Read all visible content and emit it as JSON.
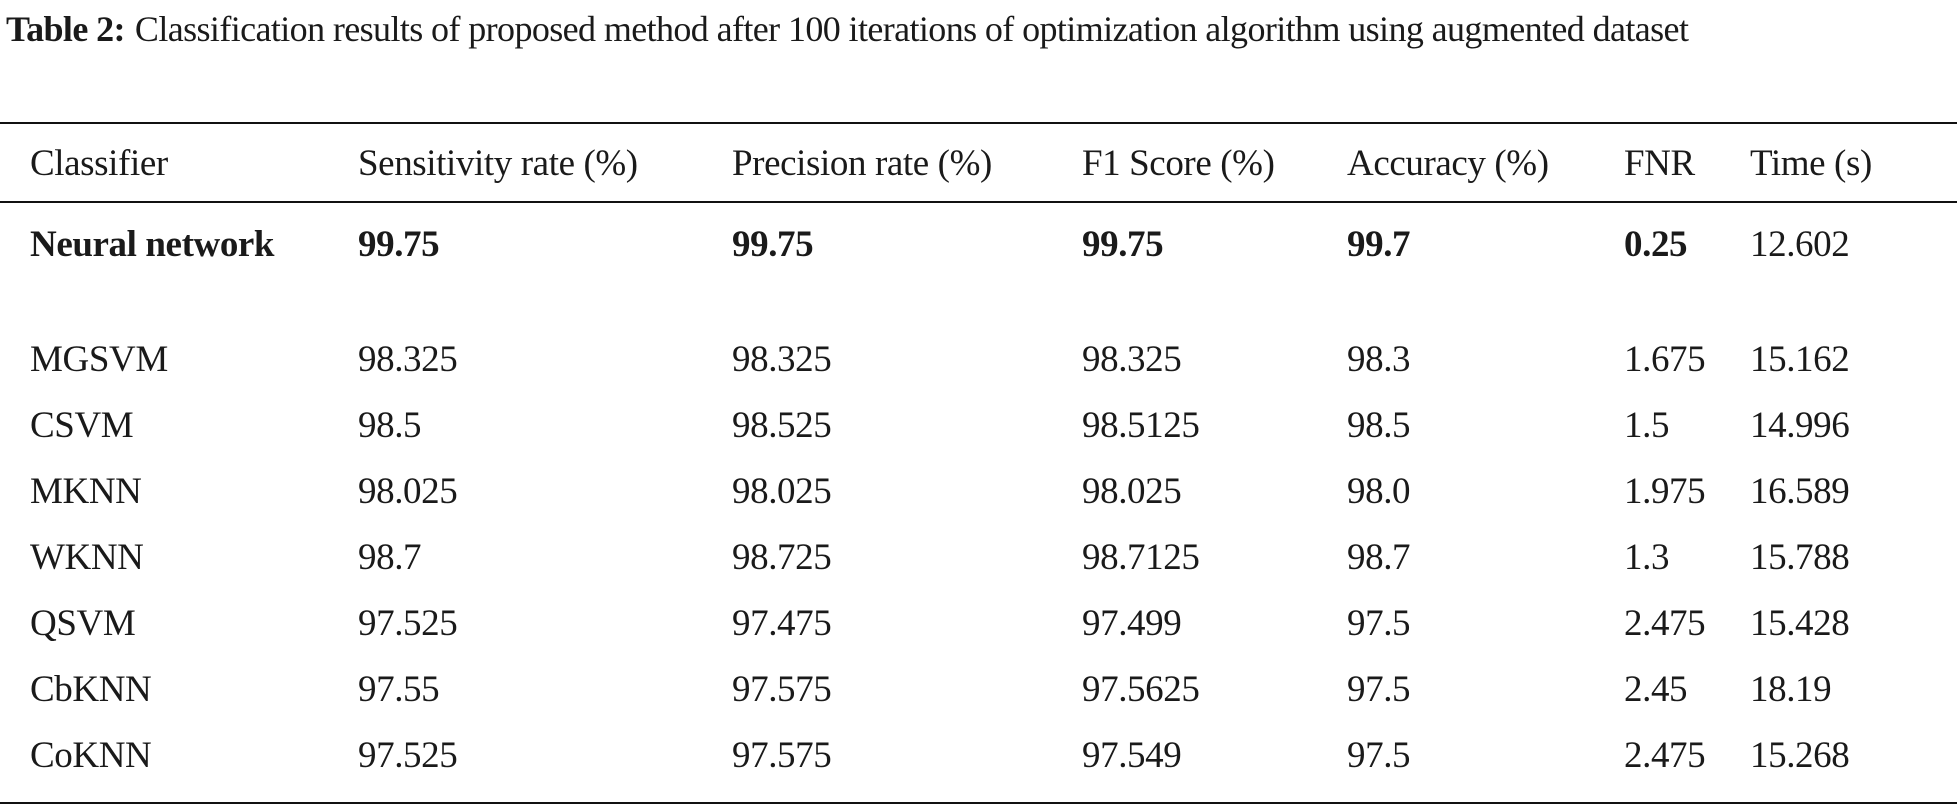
{
  "caption": {
    "label": "Table 2:",
    "text": "Classification results of proposed method after 100 iterations of optimization algorithm using augmented dataset"
  },
  "table": {
    "headers": [
      "Classifier",
      "Sensitivity rate (%)",
      "Precision rate (%)",
      "F1 Score (%)",
      "Accuracy (%)",
      "FNR",
      "Time (s)"
    ],
    "rows": [
      [
        "Neural network",
        "99.75",
        "99.75",
        "99.75",
        "99.7",
        "0.25",
        "12.602"
      ],
      [
        "MGSVM",
        "98.325",
        "98.325",
        "98.325",
        "98.3",
        "1.675",
        "15.162"
      ],
      [
        "CSVM",
        "98.5",
        "98.525",
        "98.5125",
        "98.5",
        "1.5",
        "14.996"
      ],
      [
        "MKNN",
        "98.025",
        "98.025",
        "98.025",
        "98.0",
        "1.975",
        "16.589"
      ],
      [
        "WKNN",
        "98.7",
        "98.725",
        "98.7125",
        "98.7",
        "1.3",
        "15.788"
      ],
      [
        "QSVM",
        "97.525",
        "97.475",
        "97.499",
        "97.5",
        "2.475",
        "15.428"
      ],
      [
        "CbKNN",
        "97.55",
        "97.575",
        "97.5625",
        "97.5",
        "2.45",
        "18.19"
      ],
      [
        "CoKNN",
        "97.525",
        "97.575",
        "97.549",
        "97.5",
        "2.475",
        "15.268"
      ]
    ]
  }
}
